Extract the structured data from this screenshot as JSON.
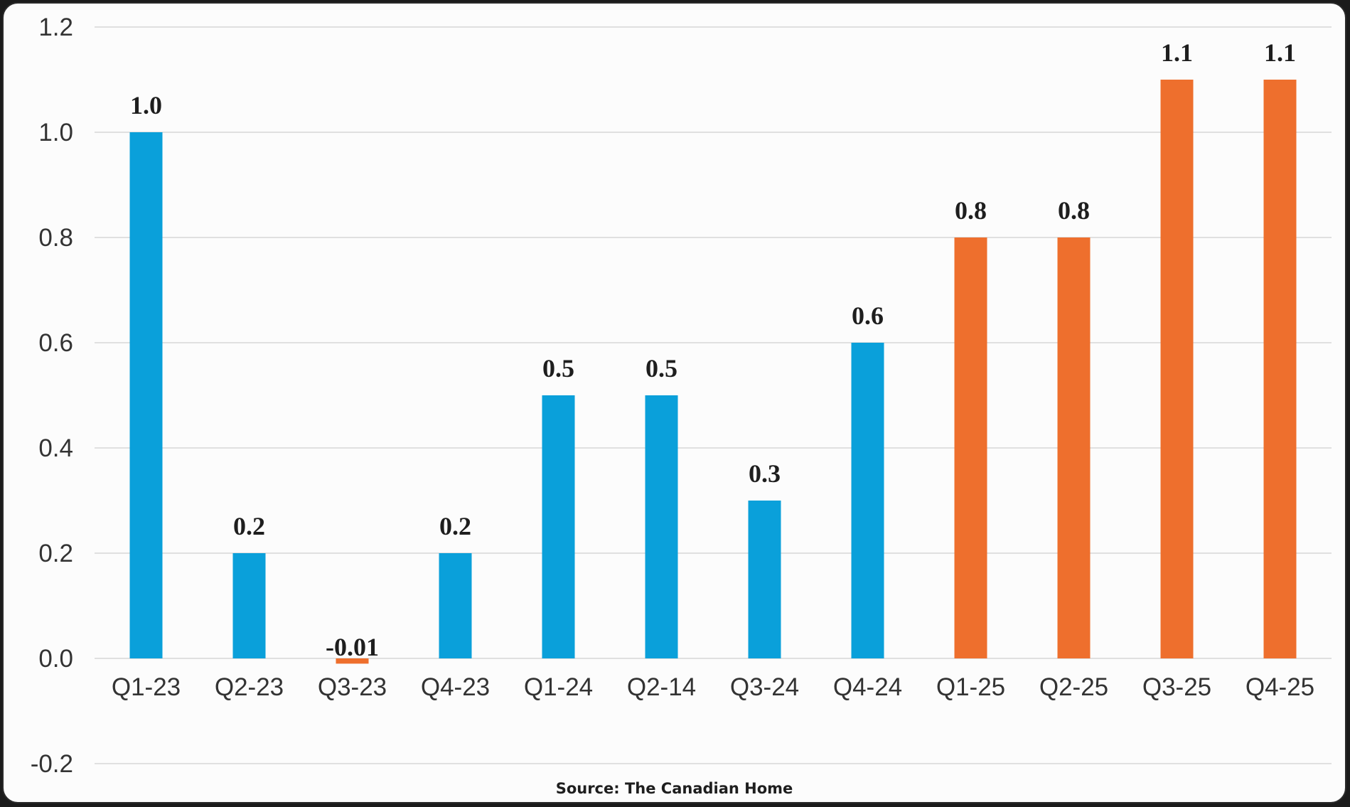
{
  "chart_data": {
    "type": "bar",
    "categories": [
      "Q1-23",
      "Q2-23",
      "Q3-23",
      "Q4-23",
      "Q1-24",
      "Q2-14",
      "Q3-24",
      "Q4-24",
      "Q1-25",
      "Q2-25",
      "Q3-25",
      "Q4-25"
    ],
    "values": [
      1.0,
      0.2,
      -0.01,
      0.2,
      0.5,
      0.5,
      0.3,
      0.6,
      0.8,
      0.8,
      1.1,
      1.1
    ],
    "data_labels": [
      "1.0",
      "0.2",
      "-0.01",
      "0.2",
      "0.5",
      "0.5",
      "0.3",
      "0.6",
      "0.8",
      "0.8",
      "1.1",
      "1.1"
    ],
    "bar_colors": [
      "#0aa0da",
      "#0aa0da",
      "#ee6f2d",
      "#0aa0da",
      "#0aa0da",
      "#0aa0da",
      "#0aa0da",
      "#0aa0da",
      "#ee6f2d",
      "#ee6f2d",
      "#ee6f2d",
      "#ee6f2d"
    ],
    "ylim": [
      -0.2,
      1.2
    ],
    "yticks": [
      "-0.2",
      "0.0",
      "0.2",
      "0.4",
      "0.6",
      "0.8",
      "1.0",
      "1.2"
    ],
    "ytick_values": [
      -0.2,
      0.0,
      0.2,
      0.4,
      0.6,
      0.8,
      1.0,
      1.2
    ],
    "grid": true,
    "title": "",
    "xlabel": "",
    "ylabel": ""
  },
  "source": "Source: The Canadian Home"
}
